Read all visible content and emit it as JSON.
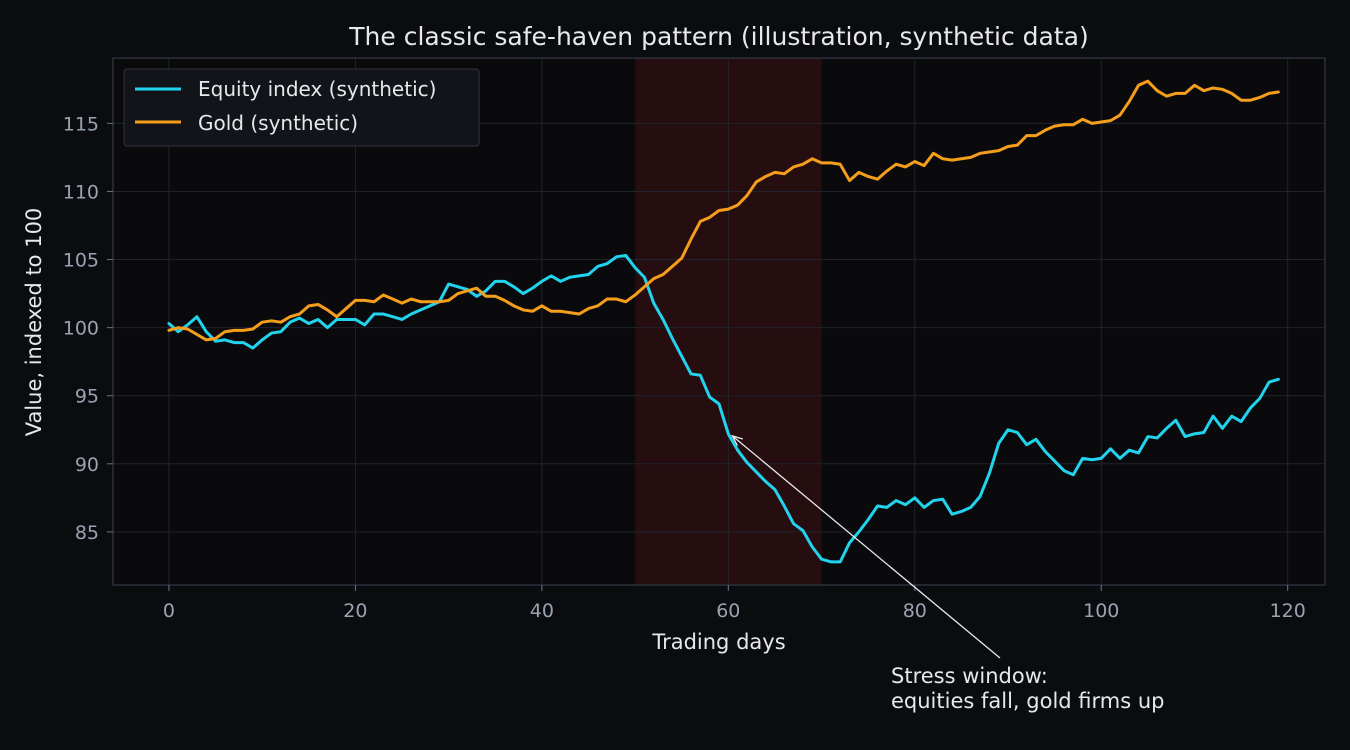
{
  "chart_data": {
    "type": "line",
    "title": "The classic safe-haven pattern (illustration, synthetic data)",
    "xlabel": "Trading days",
    "ylabel": "Value, indexed to 100",
    "xlim": [
      -6,
      124
    ],
    "ylim": [
      81.1,
      119.8
    ],
    "xticks": [
      0,
      20,
      40,
      60,
      80,
      100,
      120
    ],
    "yticks": [
      85,
      90,
      95,
      100,
      105,
      110,
      115
    ],
    "grid": true,
    "legend": "top-left",
    "shaded_region": {
      "x_start": 50,
      "x_end": 70,
      "color": "#8b1a1a"
    },
    "annotation": {
      "text_lines": [
        "Stress window:",
        "equities fall, gold firms up"
      ],
      "points_to": {
        "x": 60,
        "y": 92.2
      }
    },
    "series": [
      {
        "name": "Equity index (synthetic)",
        "color": "#22d3ee",
        "x": [
          0,
          1,
          2,
          3,
          4,
          5,
          6,
          7,
          8,
          9,
          10,
          11,
          12,
          13,
          14,
          15,
          16,
          17,
          18,
          19,
          20,
          21,
          22,
          23,
          24,
          25,
          26,
          27,
          28,
          29,
          30,
          31,
          32,
          33,
          34,
          35,
          36,
          37,
          38,
          39,
          40,
          41,
          42,
          43,
          44,
          45,
          46,
          47,
          48,
          49,
          50,
          51,
          52,
          53,
          54,
          55,
          56,
          57,
          58,
          59,
          60,
          61,
          62,
          63,
          64,
          65,
          66,
          67,
          68,
          69,
          70,
          71,
          72,
          73,
          74,
          75,
          76,
          77,
          78,
          79,
          80,
          81,
          82,
          83,
          84,
          85,
          86,
          87,
          88,
          89,
          90,
          91,
          92,
          93,
          94,
          95,
          96,
          97,
          98,
          99,
          100,
          101,
          102,
          103,
          104,
          105,
          106,
          107,
          108,
          109,
          110,
          111,
          112,
          113,
          114,
          115,
          116,
          117,
          118,
          119
        ],
        "values": [
          100.3,
          99.7,
          100.2,
          100.8,
          99.7,
          99.0,
          99.1,
          98.9,
          98.9,
          98.5,
          99.1,
          99.6,
          99.7,
          100.4,
          100.7,
          100.3,
          100.6,
          100.0,
          100.6,
          100.6,
          100.6,
          100.2,
          101.0,
          101.0,
          100.8,
          100.6,
          101.0,
          101.3,
          101.6,
          101.9,
          103.2,
          103.0,
          102.8,
          102.3,
          102.7,
          103.4,
          103.4,
          103.0,
          102.5,
          102.9,
          103.4,
          103.8,
          103.4,
          103.7,
          103.8,
          103.9,
          104.5,
          104.7,
          105.2,
          105.3,
          104.4,
          103.7,
          101.8,
          100.6,
          99.2,
          97.9,
          96.6,
          96.5,
          94.9,
          94.4,
          92.2,
          91.0,
          90.1,
          89.4,
          88.7,
          88.1,
          86.9,
          85.6,
          85.1,
          83.9,
          83.0,
          82.8,
          82.8,
          84.2,
          85.0,
          85.9,
          86.9,
          86.8,
          87.3,
          87.0,
          87.5,
          86.8,
          87.3,
          87.4,
          86.3,
          86.5,
          86.8,
          87.6,
          89.3,
          91.5,
          92.5,
          92.3,
          91.4,
          91.8,
          90.9,
          90.2,
          89.5,
          89.2,
          90.4,
          90.3,
          90.4,
          91.1,
          90.4,
          91.0,
          90.8,
          92.0,
          91.9,
          92.6,
          93.2,
          92.0,
          92.2,
          92.3,
          93.5,
          92.6,
          93.5,
          93.1,
          94.1,
          94.8,
          96.0,
          96.2
        ]
      },
      {
        "name": "Gold (synthetic)",
        "color": "#f59e1b",
        "x": [
          0,
          1,
          2,
          3,
          4,
          5,
          6,
          7,
          8,
          9,
          10,
          11,
          12,
          13,
          14,
          15,
          16,
          17,
          18,
          19,
          20,
          21,
          22,
          23,
          24,
          25,
          26,
          27,
          28,
          29,
          30,
          31,
          32,
          33,
          34,
          35,
          36,
          37,
          38,
          39,
          40,
          41,
          42,
          43,
          44,
          45,
          46,
          47,
          48,
          49,
          50,
          51,
          52,
          53,
          54,
          55,
          56,
          57,
          58,
          59,
          60,
          61,
          62,
          63,
          64,
          65,
          66,
          67,
          68,
          69,
          70,
          71,
          72,
          73,
          74,
          75,
          76,
          77,
          78,
          79,
          80,
          81,
          82,
          83,
          84,
          85,
          86,
          87,
          88,
          89,
          90,
          91,
          92,
          93,
          94,
          95,
          96,
          97,
          98,
          99,
          100,
          101,
          102,
          103,
          104,
          105,
          106,
          107,
          108,
          109,
          110,
          111,
          112,
          113,
          114,
          115,
          116,
          117,
          118,
          119
        ],
        "values": [
          99.8,
          100.0,
          99.9,
          99.5,
          99.1,
          99.2,
          99.7,
          99.8,
          99.8,
          99.9,
          100.4,
          100.5,
          100.4,
          100.8,
          101.0,
          101.6,
          101.7,
          101.3,
          100.8,
          101.4,
          102.0,
          102.0,
          101.9,
          102.4,
          102.1,
          101.8,
          102.1,
          101.9,
          101.9,
          101.9,
          102.0,
          102.5,
          102.7,
          102.9,
          102.3,
          102.3,
          102.0,
          101.6,
          101.3,
          101.2,
          101.6,
          101.2,
          101.2,
          101.1,
          101.0,
          101.4,
          101.6,
          102.1,
          102.1,
          101.9,
          102.4,
          103.0,
          103.6,
          103.9,
          104.5,
          105.1,
          106.5,
          107.8,
          108.1,
          108.6,
          108.7,
          109.0,
          109.7,
          110.7,
          111.1,
          111.4,
          111.3,
          111.8,
          112.0,
          112.4,
          112.1,
          112.1,
          112.0,
          110.8,
          111.4,
          111.1,
          110.9,
          111.5,
          112.0,
          111.8,
          112.2,
          111.9,
          112.8,
          112.4,
          112.3,
          112.4,
          112.5,
          112.8,
          112.9,
          113.0,
          113.3,
          113.4,
          114.1,
          114.1,
          114.5,
          114.8,
          114.9,
          114.9,
          115.3,
          115.0,
          115.1,
          115.2,
          115.6,
          116.6,
          117.8,
          118.1,
          117.4,
          117.0,
          117.2,
          117.2,
          117.8,
          117.4,
          117.6,
          117.5,
          117.2,
          116.7,
          116.7,
          116.9,
          117.2,
          117.3
        ]
      }
    ]
  }
}
